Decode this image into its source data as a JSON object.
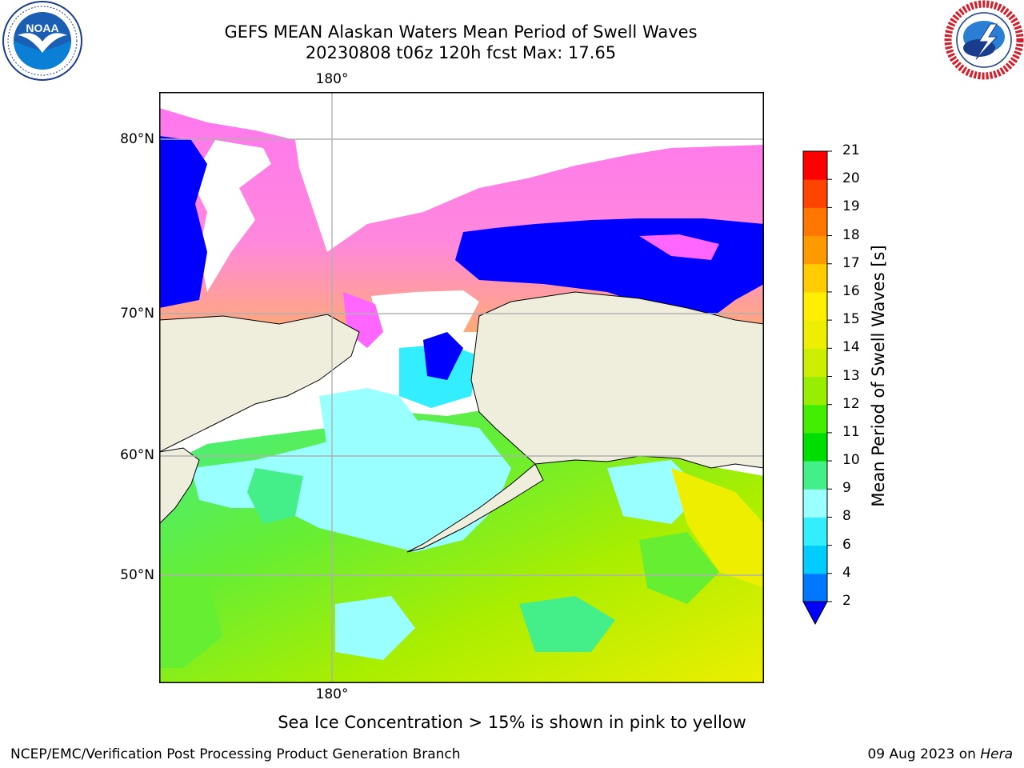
{
  "header": {
    "title_line1": "GEFS MEAN Alaskan Waters Mean Period of Swell Waves",
    "title_line2": "20230808 t06z 120h fcst   Max: 17.65"
  },
  "logos": {
    "left": {
      "name": "NOAA",
      "ring_text": "NATIONAL OCEANIC AND ATMOSPHERIC ADMINISTRATION · U.S. DEPARTMENT OF COMMERCE"
    },
    "right": {
      "name": "NATIONAL WEATHER SERVICE"
    }
  },
  "map": {
    "lon_top_label": "180°",
    "lon_bottom_label": "180°",
    "lat_labels": [
      "80°N",
      "70°N",
      "60°N",
      "50°N"
    ],
    "colors": {
      "land": "#efeddc",
      "ice_pink": "#ff66ff",
      "ice_orange": "#ffaa66",
      "deep_blue": "#0000ff",
      "ice_free_white": "#ffffff",
      "grid": "#b0b0b0"
    }
  },
  "colorbar": {
    "label": "Mean Period of Swell Waves [s]",
    "ticks": [
      "2",
      "4",
      "6",
      "8",
      "9",
      "10",
      "11",
      "12",
      "13",
      "14",
      "15",
      "16",
      "17",
      "18",
      "19",
      "20",
      "21"
    ],
    "colors": [
      "#0077ff",
      "#00ccff",
      "#33eeff",
      "#99ffff",
      "#44ee88",
      "#00dd00",
      "#44ee00",
      "#99ee00",
      "#ccee00",
      "#eeee00",
      "#ffee00",
      "#ffcc00",
      "#ff9900",
      "#ff7700",
      "#ff4400",
      "#ff0000"
    ],
    "extend_color": "#0000ff"
  },
  "footer": {
    "ice_note": "Sea Ice Concentration > 15% is shown in pink to yellow",
    "left": "NCEP/EMC/Verification Post Processing Product Generation Branch",
    "right_prefix": "09 Aug 2023 on ",
    "right_machine": "Hera"
  }
}
